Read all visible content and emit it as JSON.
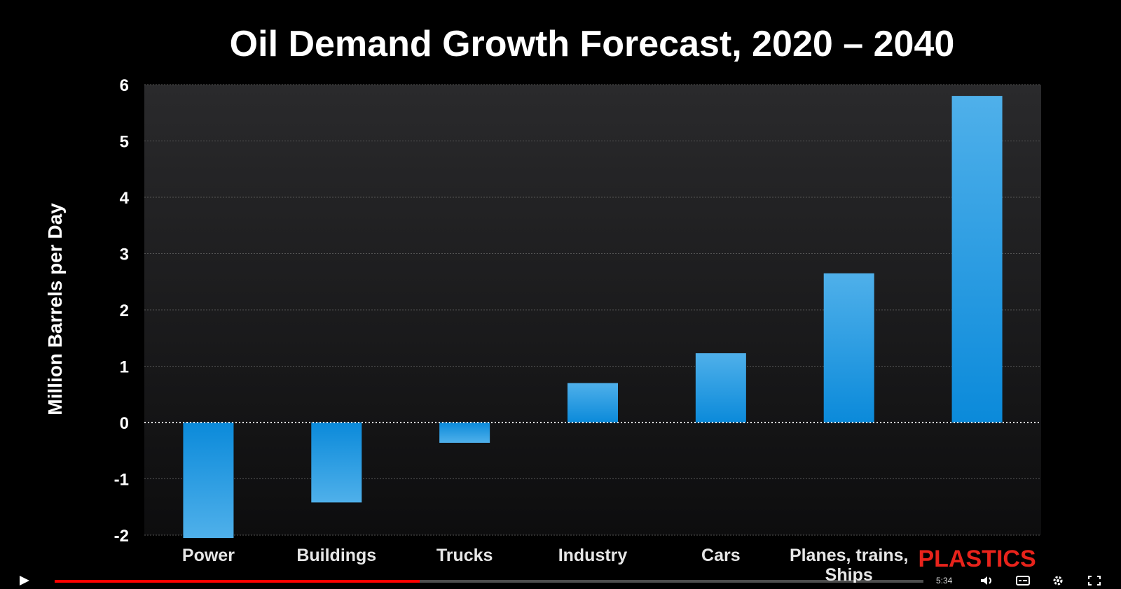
{
  "chart_data": {
    "type": "bar",
    "title": "Oil Demand Growth Forecast, 2020 – 2040",
    "ylabel": "Million Barrels per Day",
    "xlabel": "",
    "categories": [
      "Power",
      "Buildings",
      "Trucks",
      "Industry",
      "Cars",
      "Planes, trains, Ships",
      "PLASTICS"
    ],
    "values": [
      -2.05,
      -1.42,
      -0.36,
      0.7,
      1.23,
      2.65,
      5.8
    ],
    "highlight_category": "PLASTICS",
    "ylim": [
      -2,
      6
    ],
    "yticks": [
      "6",
      "5",
      "4",
      "3",
      "2",
      "1",
      "0",
      "-1",
      "-2"
    ],
    "grid": true,
    "colors": {
      "bar": "#1d8fe0",
      "highlight_label": "#e8231b",
      "plot_background": "#1e1e20",
      "background": "#000000"
    }
  },
  "player": {
    "progress": 0.42,
    "time": "5:34",
    "colors": {
      "progress": "#ff0000"
    },
    "icons": [
      "play-icon",
      "volume-icon",
      "subtitles-icon",
      "settings-icon",
      "fullscreen-icon"
    ]
  }
}
